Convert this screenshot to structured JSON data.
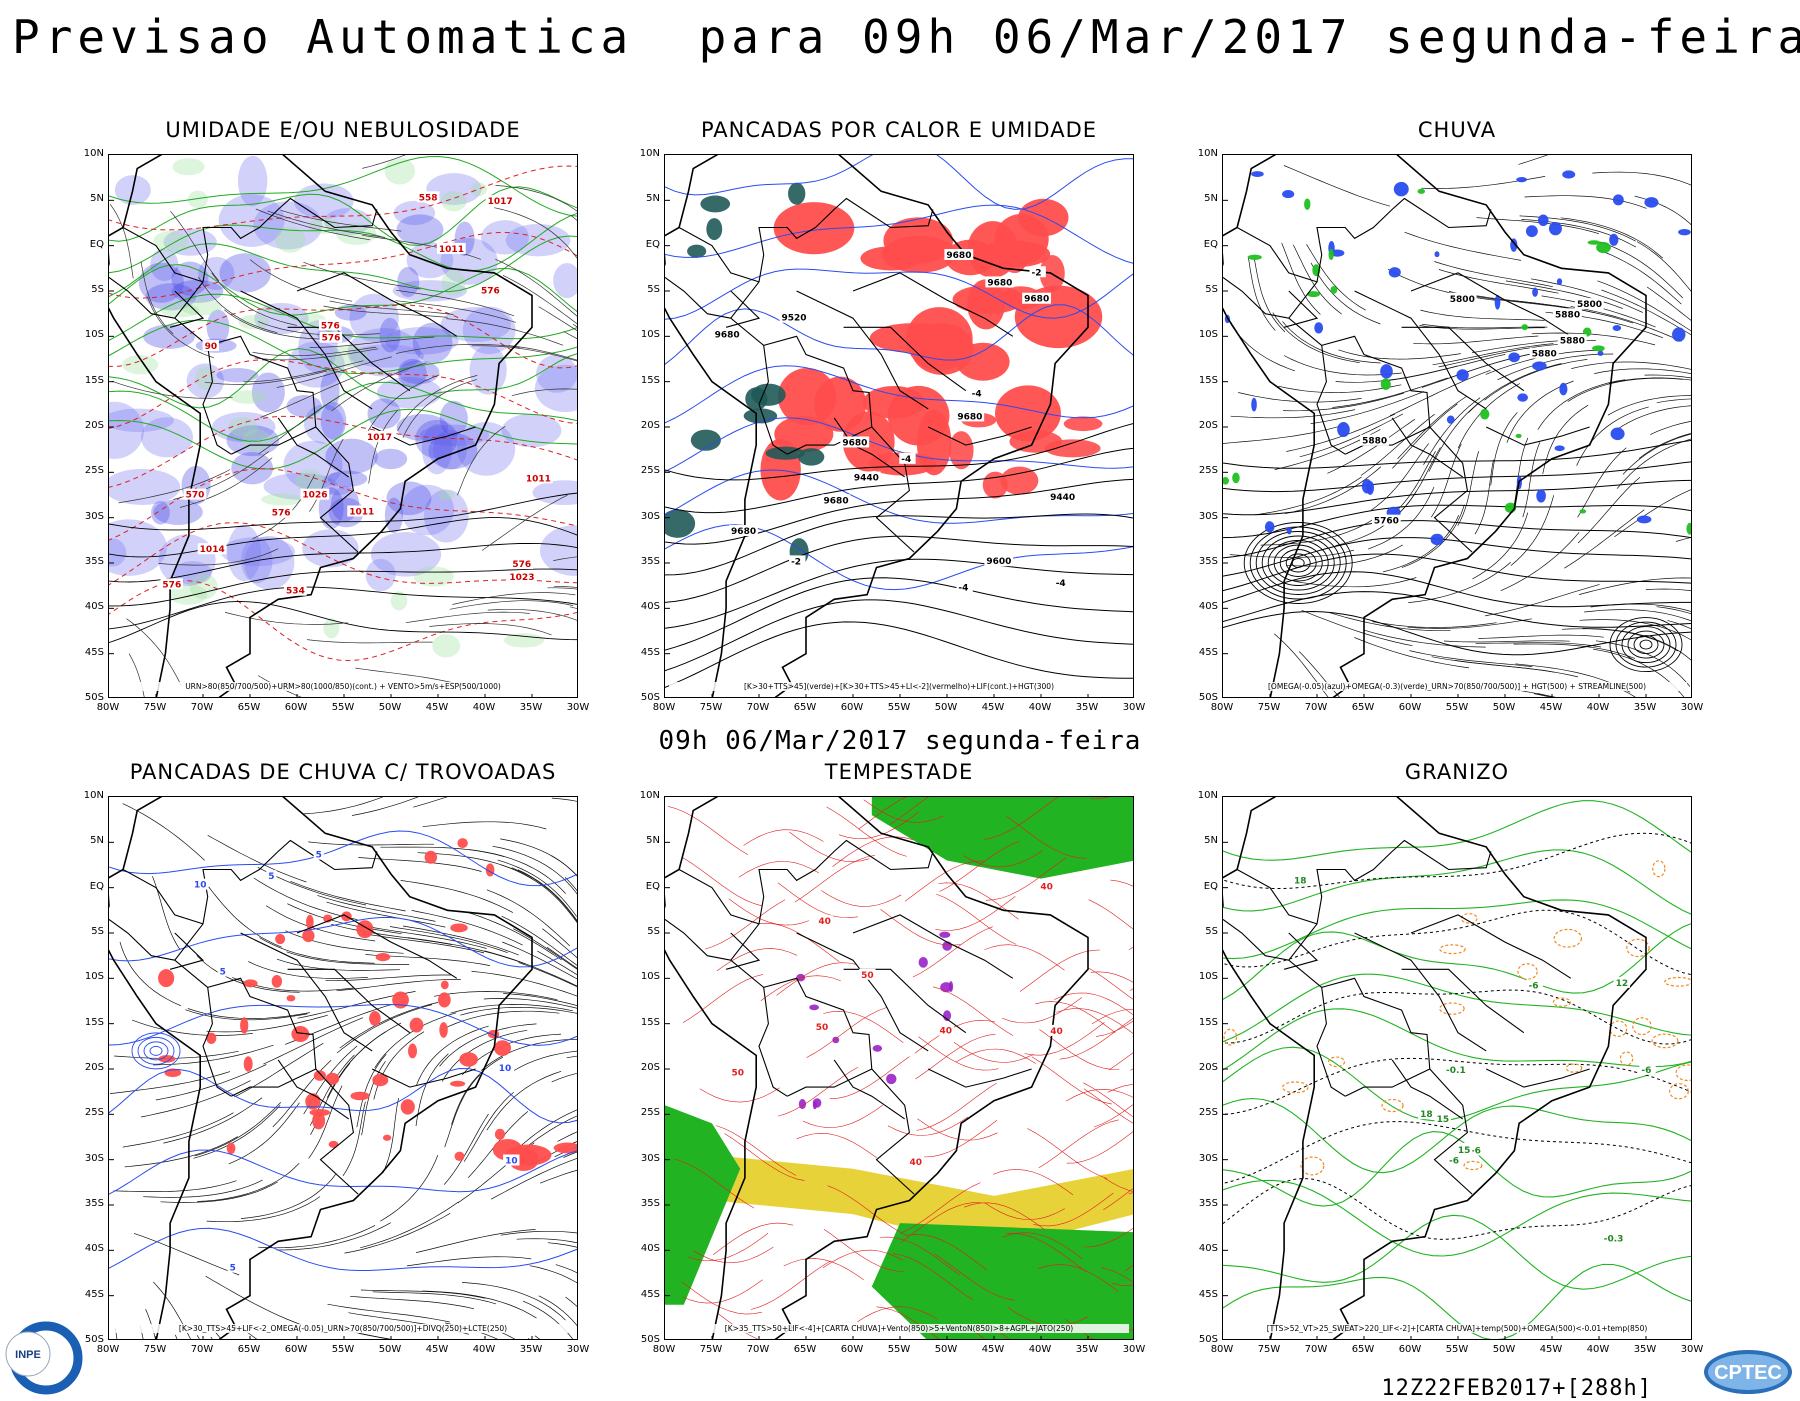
{
  "header": {
    "title": "Previsao Automatica  para 09h 06/Mar/2017 segunda-feira",
    "subtitle": "09h 06/Mar/2017 segunda-feira",
    "run": "12Z22FEB2017+[288h]"
  },
  "axes": {
    "lat_labels": [
      "10N",
      "5N",
      "EQ",
      "5S",
      "10S",
      "15S",
      "20S",
      "25S",
      "30S",
      "35S",
      "40S",
      "45S",
      "50S"
    ],
    "lon_labels": [
      "80W",
      "75W",
      "70W",
      "65W",
      "60W",
      "55W",
      "50W",
      "45W",
      "40W",
      "35W",
      "30W"
    ]
  },
  "panels": [
    {
      "title": "UMIDADE E/OU NEBULOSIDADE",
      "legend": "URN>80(850/700/500)+URM>80(1000/850)(cont.) + VENTO>5m/s+ESP(500/1000)",
      "labels": [
        "1014",
        "576",
        "576",
        "576",
        "576",
        "576",
        "1011",
        "1011",
        "1017",
        "1017",
        "1011",
        "570",
        "576",
        "1023",
        "1026",
        "558",
        "534",
        "90"
      ]
    },
    {
      "title": "PANCADAS POR CALOR E UMIDADE",
      "legend": "[K>30+TTS>45](verde)+[K>30+TTS>45+LI<-2](vermelho)+LIF(cont.)+HGT(300)",
      "labels": [
        "9680",
        "9680",
        "9680",
        "9680",
        "9680",
        "9680",
        "9680",
        "9680",
        "9600",
        "9520",
        "9440",
        "9440",
        "-4",
        "-4",
        "-4",
        "-2",
        "-2",
        "-4"
      ]
    },
    {
      "title": "CHUVA",
      "legend": "[OMEGA(-0.05)(azul)+OMEGA(-0.3)(verde)_URN>70(850/700/500)] + HGT(500) + STREAMLINE(500)",
      "labels": [
        "5880",
        "5880",
        "5880",
        "5800",
        "5760",
        "5880",
        "5800"
      ]
    },
    {
      "title": "PANCADAS DE CHUVA C/ TROVOADAS",
      "legend": "[K>30_TTS>45+LIF<-2_OMEGA(-0.05)_URN>70(850/700/500)]+DIVQ(250)+LCTE(250)",
      "labels": [
        "5",
        "5",
        "10",
        "5",
        "5",
        "10",
        "10"
      ]
    },
    {
      "title": "TEMPESTADE",
      "legend": "[K>35_TTS>50+LIF<-4]+[CARTA CHUVA]+Vento(850)>5+VentoN(850)>8+AGPL+JATO(250)",
      "labels": [
        "40",
        "50",
        "40",
        "40",
        "50",
        "40",
        "50",
        "40"
      ]
    },
    {
      "title": "GRANIZO",
      "legend": "[TTS>52_VT>25_SWEAT>220_LIF<-2]+[CARTA CHUVA]+temp(500)+OMEGA(500)<-0.01+temp(850)",
      "labels": [
        "-6",
        "-6",
        "18",
        "18",
        "18",
        "15",
        "-0.3",
        "12",
        "-6",
        "-0.1",
        "-6",
        "15"
      ]
    }
  ],
  "logos": {
    "left": "INPE",
    "right": "CPTEC"
  }
}
